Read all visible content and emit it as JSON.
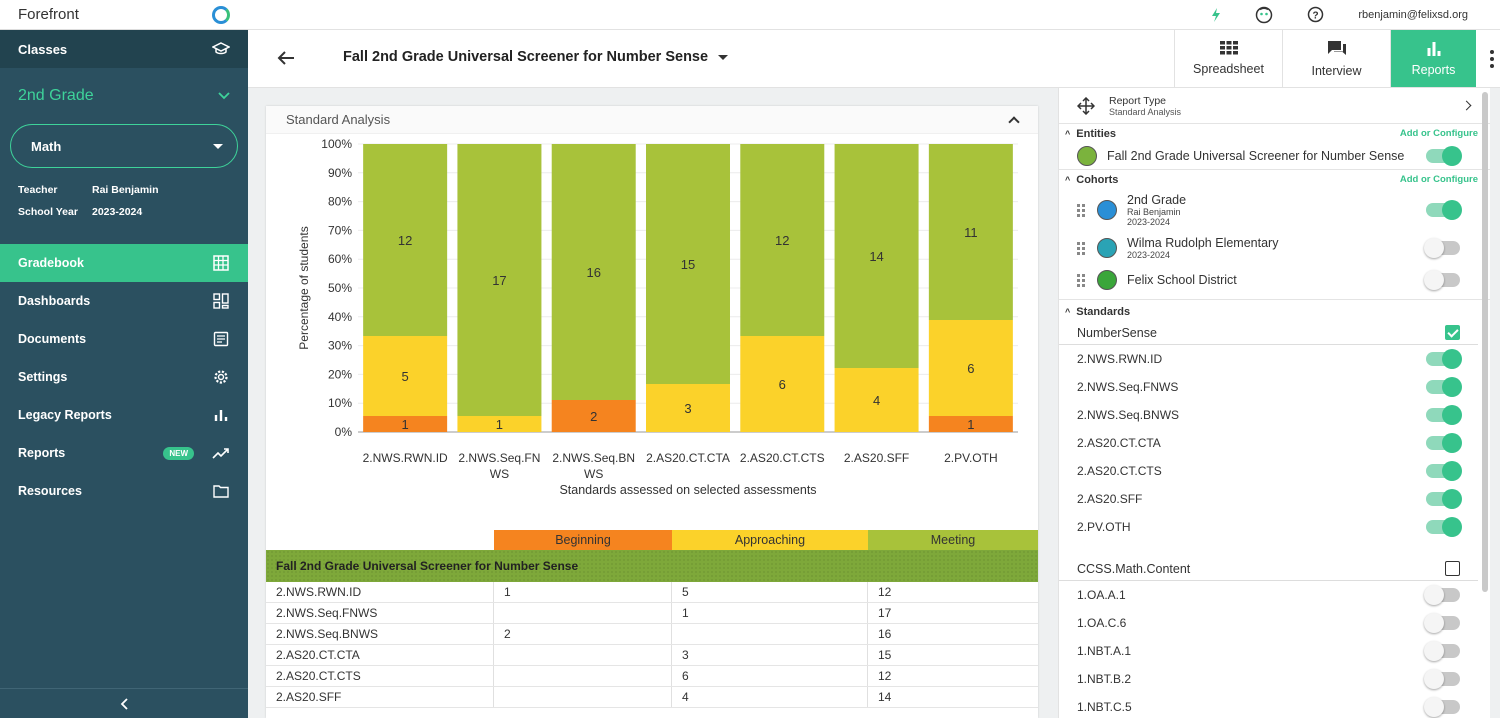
{
  "app": {
    "brand": "Forefront",
    "user_email": "rbenjamin@felixsd.org"
  },
  "sidebar": {
    "classes_label": "Classes",
    "grade": "2nd Grade",
    "subject": "Math",
    "teacher_label": "Teacher",
    "teacher": "Rai Benjamin",
    "year_label": "School Year",
    "year": "2023-2024",
    "items": [
      {
        "label": "Gradebook",
        "icon": "grid-icon",
        "active": true
      },
      {
        "label": "Dashboards",
        "icon": "dashboard-icon"
      },
      {
        "label": "Documents",
        "icon": "document-icon"
      },
      {
        "label": "Settings",
        "icon": "gear-icon"
      },
      {
        "label": "Legacy Reports",
        "icon": "bar-chart-icon"
      },
      {
        "label": "Reports",
        "icon": "trend-icon",
        "badge": "NEW"
      },
      {
        "label": "Resources",
        "icon": "folder-icon"
      }
    ]
  },
  "header": {
    "title": "Fall 2nd Grade Universal Screener for Number Sense",
    "tabs": [
      {
        "label": "Spreadsheet"
      },
      {
        "label": "Interview"
      },
      {
        "label": "Reports",
        "active": true
      }
    ]
  },
  "card": {
    "title": "Standard Analysis"
  },
  "colors": {
    "beginning": "#f5841f",
    "approaching": "#fbd22a",
    "meeting": "#a8c23a",
    "accent": "#37c38c"
  },
  "chart_data": {
    "type": "bar",
    "stacked": true,
    "percent": true,
    "ylabel": "Percentage of students",
    "xlabel": "Standards assessed on selected assessments",
    "ylim": [
      0,
      100
    ],
    "yticks": [
      "0%",
      "10%",
      "20%",
      "30%",
      "40%",
      "50%",
      "60%",
      "70%",
      "80%",
      "90%",
      "100%"
    ],
    "categories": [
      "2.NWS.RWN.ID",
      "2.NWS.Seq.FNWS",
      "2.NWS.Seq.BNWS",
      "2.AS20.CT.CTA",
      "2.AS20.CT.CTS",
      "2.AS20.SFF",
      "2.PV.OTH"
    ],
    "category_lines": [
      [
        "2.NWS.RWN.ID"
      ],
      [
        "2.NWS.Seq.FN",
        "WS"
      ],
      [
        "2.NWS.Seq.BN",
        "WS"
      ],
      [
        "2.AS20.CT.CTA"
      ],
      [
        "2.AS20.CT.CTS"
      ],
      [
        "2.AS20.SFF"
      ],
      [
        "2.PV.OTH"
      ]
    ],
    "series": [
      {
        "name": "Beginning",
        "values": [
          1,
          0,
          2,
          0,
          0,
          0,
          1
        ]
      },
      {
        "name": "Approaching",
        "values": [
          5,
          1,
          0,
          3,
          6,
          4,
          6
        ]
      },
      {
        "name": "Meeting",
        "values": [
          12,
          17,
          16,
          15,
          12,
          14,
          11
        ]
      }
    ]
  },
  "table": {
    "group": "Fall 2nd Grade Universal Screener for Number Sense",
    "rows": [
      {
        "std": "2.NWS.RWN.ID",
        "b": "1",
        "a": "5",
        "m": "12"
      },
      {
        "std": "2.NWS.Seq.FNWS",
        "b": "",
        "a": "1",
        "m": "17"
      },
      {
        "std": "2.NWS.Seq.BNWS",
        "b": "2",
        "a": "",
        "m": "16"
      },
      {
        "std": "2.AS20.CT.CTA",
        "b": "",
        "a": "3",
        "m": "15"
      },
      {
        "std": "2.AS20.CT.CTS",
        "b": "",
        "a": "6",
        "m": "12"
      },
      {
        "std": "2.AS20.SFF",
        "b": "",
        "a": "4",
        "m": "14"
      }
    ]
  },
  "panel": {
    "report_type_label": "Report Type",
    "report_type": "Standard Analysis",
    "entities_label": "Entities",
    "add_configure": "Add or Configure",
    "entity": "Fall 2nd Grade Universal Screener for Number Sense",
    "cohorts_label": "Cohorts",
    "cohorts": [
      {
        "name": "2nd Grade",
        "sub1": "Rai Benjamin",
        "sub2": "2023-2024",
        "color": "#2a8fd6",
        "on": true
      },
      {
        "name": "Wilma Rudolph Elementary",
        "sub1": "2023-2024",
        "color": "#2aa3b5",
        "on": false
      },
      {
        "name": "Felix School District",
        "color": "#3aa63a",
        "on": false
      }
    ],
    "standards_label": "Standards",
    "group1": "NumberSense",
    "group1_items": [
      "2.NWS.RWN.ID",
      "2.NWS.Seq.FNWS",
      "2.NWS.Seq.BNWS",
      "2.AS20.CT.CTA",
      "2.AS20.CT.CTS",
      "2.AS20.SFF",
      "2.PV.OTH"
    ],
    "group2": "CCSS.Math.Content",
    "group2_items": [
      "1.OA.A.1",
      "1.OA.C.6",
      "1.NBT.A.1",
      "1.NBT.B.2",
      "1.NBT.C.5"
    ]
  }
}
